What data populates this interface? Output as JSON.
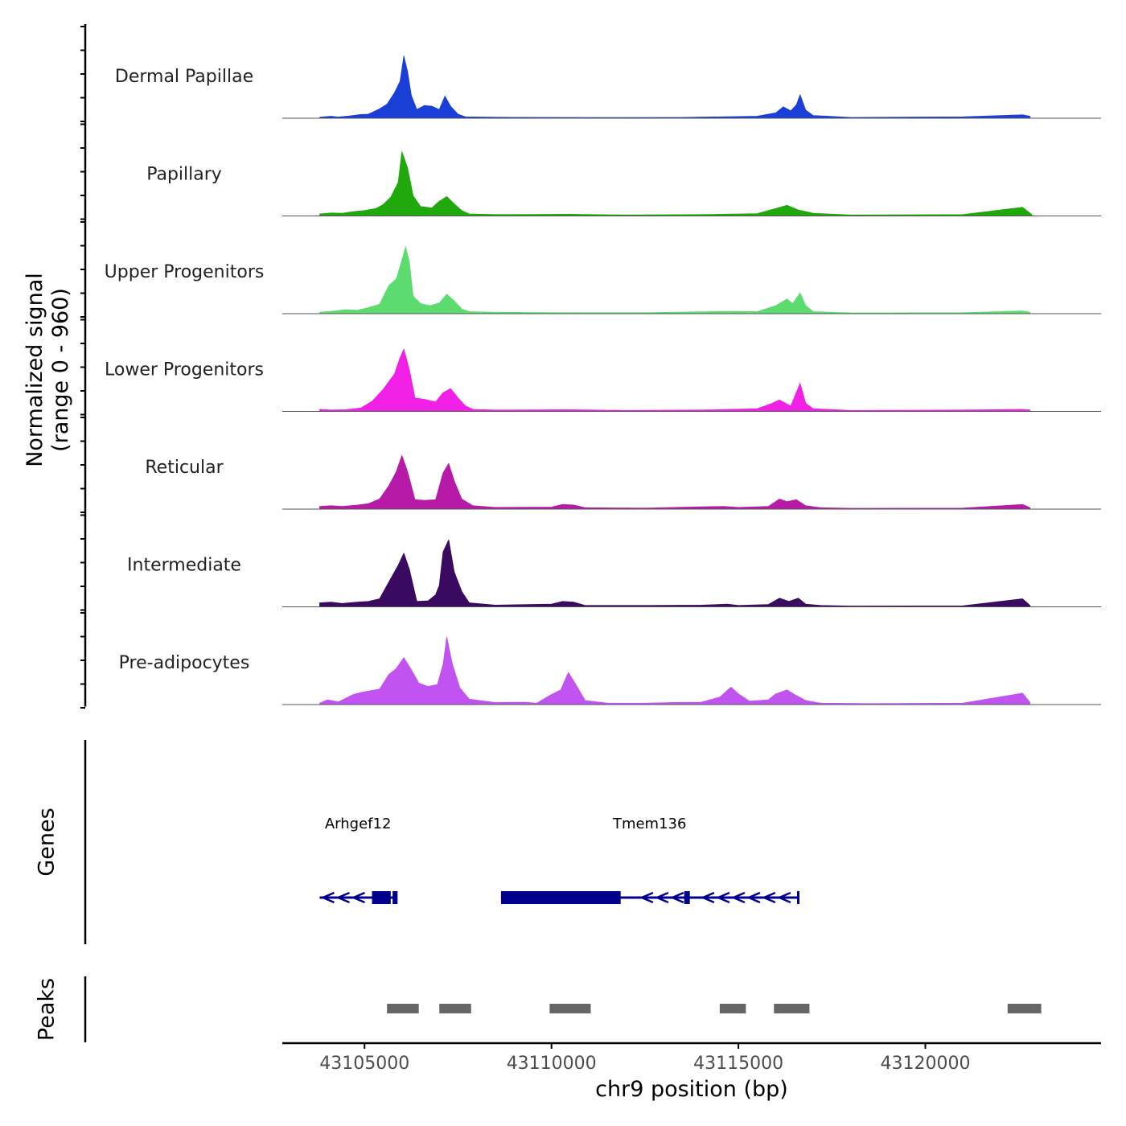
{
  "chart_data": {
    "type": "area",
    "title": "",
    "ylabel": "Normalized signal",
    "ylabel_range": "(range 0 - 960)",
    "ylim": [
      0,
      960
    ],
    "xlabel": "chr9 position (bp)",
    "xlim": [
      43102800,
      43124700
    ],
    "x_ticks": [
      43105000,
      43110000,
      43115000,
      43120000
    ],
    "x_tick_labels": [
      "43105000",
      "43110000",
      "43115000",
      "43120000"
    ],
    "tracks": [
      {
        "name": "Dermal Papillae",
        "color": "#1a3fd6",
        "points": [
          [
            43103800,
            15
          ],
          [
            43104100,
            30
          ],
          [
            43104300,
            18
          ],
          [
            43104600,
            35
          ],
          [
            43104900,
            55
          ],
          [
            43105100,
            60
          ],
          [
            43105400,
            140
          ],
          [
            43105600,
            210
          ],
          [
            43105800,
            380
          ],
          [
            43105950,
            550
          ],
          [
            43106050,
            930
          ],
          [
            43106150,
            700
          ],
          [
            43106250,
            340
          ],
          [
            43106400,
            130
          ],
          [
            43106600,
            190
          ],
          [
            43106800,
            180
          ],
          [
            43107000,
            130
          ],
          [
            43107150,
            330
          ],
          [
            43107300,
            180
          ],
          [
            43107500,
            60
          ],
          [
            43107700,
            20
          ],
          [
            43108500,
            15
          ],
          [
            43110200,
            12
          ],
          [
            43111500,
            10
          ],
          [
            43113500,
            12
          ],
          [
            43115500,
            30
          ],
          [
            43116000,
            80
          ],
          [
            43116200,
            170
          ],
          [
            43116400,
            110
          ],
          [
            43116550,
            200
          ],
          [
            43116650,
            350
          ],
          [
            43116800,
            120
          ],
          [
            43117000,
            40
          ],
          [
            43117400,
            30
          ],
          [
            43118000,
            12
          ],
          [
            43121000,
            20
          ],
          [
            43122600,
            50
          ],
          [
            43122800,
            30
          ]
        ]
      },
      {
        "name": "Papillary",
        "color": "#20a80c",
        "points": [
          [
            43103800,
            30
          ],
          [
            43104100,
            45
          ],
          [
            43104400,
            40
          ],
          [
            43104700,
            65
          ],
          [
            43105000,
            80
          ],
          [
            43105300,
            110
          ],
          [
            43105500,
            170
          ],
          [
            43105700,
            280
          ],
          [
            43105900,
            500
          ],
          [
            43106000,
            960
          ],
          [
            43106150,
            720
          ],
          [
            43106300,
            300
          ],
          [
            43106500,
            140
          ],
          [
            43106800,
            120
          ],
          [
            43107000,
            220
          ],
          [
            43107200,
            290
          ],
          [
            43107400,
            180
          ],
          [
            43107600,
            80
          ],
          [
            43107800,
            30
          ],
          [
            43108500,
            20
          ],
          [
            43110500,
            25
          ],
          [
            43112000,
            15
          ],
          [
            43114000,
            20
          ],
          [
            43115500,
            35
          ],
          [
            43116000,
            110
          ],
          [
            43116300,
            160
          ],
          [
            43116600,
            90
          ],
          [
            43117000,
            40
          ],
          [
            43118000,
            15
          ],
          [
            43121000,
            20
          ],
          [
            43122600,
            130
          ],
          [
            43122850,
            20
          ]
        ]
      },
      {
        "name": "Upper Progenitors",
        "color": "#5cdc6f",
        "points": [
          [
            43103800,
            20
          ],
          [
            43104200,
            40
          ],
          [
            43104500,
            60
          ],
          [
            43104800,
            50
          ],
          [
            43105100,
            90
          ],
          [
            43105400,
            140
          ],
          [
            43105650,
            420
          ],
          [
            43105850,
            520
          ],
          [
            43106000,
            800
          ],
          [
            43106100,
            1000
          ],
          [
            43106200,
            760
          ],
          [
            43106300,
            260
          ],
          [
            43106500,
            150
          ],
          [
            43106750,
            120
          ],
          [
            43107000,
            160
          ],
          [
            43107200,
            290
          ],
          [
            43107400,
            190
          ],
          [
            43107600,
            70
          ],
          [
            43107800,
            30
          ],
          [
            43108500,
            20
          ],
          [
            43110200,
            15
          ],
          [
            43112500,
            15
          ],
          [
            43114800,
            35
          ],
          [
            43115500,
            30
          ],
          [
            43116000,
            120
          ],
          [
            43116300,
            220
          ],
          [
            43116450,
            150
          ],
          [
            43116650,
            310
          ],
          [
            43116800,
            120
          ],
          [
            43117000,
            30
          ],
          [
            43118000,
            12
          ],
          [
            43121000,
            15
          ],
          [
            43122600,
            40
          ],
          [
            43122800,
            20
          ]
        ]
      },
      {
        "name": "Lower Progenitors",
        "color": "#f020e6",
        "points": [
          [
            43103800,
            30
          ],
          [
            43104100,
            20
          ],
          [
            43104500,
            25
          ],
          [
            43104900,
            50
          ],
          [
            43105200,
            150
          ],
          [
            43105500,
            330
          ],
          [
            43105800,
            560
          ],
          [
            43105950,
            800
          ],
          [
            43106050,
            930
          ],
          [
            43106200,
            620
          ],
          [
            43106350,
            200
          ],
          [
            43106600,
            180
          ],
          [
            43106900,
            140
          ],
          [
            43107100,
            280
          ],
          [
            43107300,
            340
          ],
          [
            43107500,
            200
          ],
          [
            43107700,
            80
          ],
          [
            43107900,
            30
          ],
          [
            43108500,
            20
          ],
          [
            43110500,
            25
          ],
          [
            43112000,
            15
          ],
          [
            43114000,
            20
          ],
          [
            43115500,
            40
          ],
          [
            43115900,
            120
          ],
          [
            43116100,
            170
          ],
          [
            43116400,
            80
          ],
          [
            43116650,
            420
          ],
          [
            43116800,
            120
          ],
          [
            43117000,
            40
          ],
          [
            43118000,
            15
          ],
          [
            43121000,
            20
          ],
          [
            43122600,
            30
          ],
          [
            43122800,
            20
          ]
        ]
      },
      {
        "name": "Reticular",
        "color": "#b61aa7",
        "points": [
          [
            43103800,
            40
          ],
          [
            43104100,
            50
          ],
          [
            43104400,
            40
          ],
          [
            43104800,
            60
          ],
          [
            43105100,
            80
          ],
          [
            43105400,
            150
          ],
          [
            43105650,
            350
          ],
          [
            43105850,
            560
          ],
          [
            43106000,
            800
          ],
          [
            43106150,
            560
          ],
          [
            43106350,
            140
          ],
          [
            43106600,
            130
          ],
          [
            43106900,
            140
          ],
          [
            43107100,
            540
          ],
          [
            43107250,
            680
          ],
          [
            43107400,
            420
          ],
          [
            43107600,
            150
          ],
          [
            43107900,
            50
          ],
          [
            43108500,
            25
          ],
          [
            43110000,
            30
          ],
          [
            43110300,
            70
          ],
          [
            43110600,
            60
          ],
          [
            43110900,
            20
          ],
          [
            43112500,
            15
          ],
          [
            43114000,
            35
          ],
          [
            43114600,
            40
          ],
          [
            43115000,
            25
          ],
          [
            43115800,
            40
          ],
          [
            43116100,
            150
          ],
          [
            43116300,
            110
          ],
          [
            43116550,
            140
          ],
          [
            43116800,
            50
          ],
          [
            43117200,
            20
          ],
          [
            43118000,
            12
          ],
          [
            43121000,
            15
          ],
          [
            43122600,
            70
          ],
          [
            43122800,
            20
          ]
        ]
      },
      {
        "name": "Intermediate",
        "color": "#3a0a60",
        "points": [
          [
            43103800,
            60
          ],
          [
            43104100,
            70
          ],
          [
            43104400,
            50
          ],
          [
            43104800,
            70
          ],
          [
            43105100,
            80
          ],
          [
            43105400,
            120
          ],
          [
            43105700,
            420
          ],
          [
            43105900,
            620
          ],
          [
            43106050,
            800
          ],
          [
            43106200,
            560
          ],
          [
            43106400,
            80
          ],
          [
            43106700,
            90
          ],
          [
            43106900,
            180
          ],
          [
            43107000,
            320
          ],
          [
            43107100,
            820
          ],
          [
            43107250,
            1000
          ],
          [
            43107400,
            520
          ],
          [
            43107600,
            230
          ],
          [
            43107800,
            60
          ],
          [
            43108500,
            25
          ],
          [
            43110000,
            40
          ],
          [
            43110300,
            80
          ],
          [
            43110600,
            70
          ],
          [
            43110900,
            20
          ],
          [
            43112500,
            20
          ],
          [
            43114000,
            25
          ],
          [
            43114700,
            40
          ],
          [
            43115000,
            20
          ],
          [
            43115800,
            35
          ],
          [
            43116100,
            130
          ],
          [
            43116350,
            80
          ],
          [
            43116600,
            130
          ],
          [
            43116800,
            40
          ],
          [
            43117200,
            20
          ],
          [
            43118000,
            12
          ],
          [
            43121000,
            15
          ],
          [
            43122600,
            120
          ],
          [
            43122800,
            20
          ]
        ]
      },
      {
        "name": "Pre-adipocytes",
        "color": "#c153f0",
        "points": [
          [
            43103800,
            20
          ],
          [
            43104000,
            70
          ],
          [
            43104300,
            40
          ],
          [
            43104700,
            150
          ],
          [
            43104900,
            180
          ],
          [
            43105100,
            200
          ],
          [
            43105400,
            230
          ],
          [
            43105650,
            450
          ],
          [
            43105850,
            540
          ],
          [
            43106050,
            700
          ],
          [
            43106250,
            520
          ],
          [
            43106450,
            320
          ],
          [
            43106700,
            270
          ],
          [
            43106950,
            300
          ],
          [
            43107100,
            600
          ],
          [
            43107200,
            1010
          ],
          [
            43107350,
            600
          ],
          [
            43107550,
            250
          ],
          [
            43107800,
            80
          ],
          [
            43108500,
            30
          ],
          [
            43109300,
            35
          ],
          [
            43109600,
            20
          ],
          [
            43110000,
            150
          ],
          [
            43110250,
            220
          ],
          [
            43110450,
            480
          ],
          [
            43110650,
            300
          ],
          [
            43110900,
            60
          ],
          [
            43111500,
            20
          ],
          [
            43112500,
            20
          ],
          [
            43113200,
            30
          ],
          [
            43114000,
            35
          ],
          [
            43114500,
            110
          ],
          [
            43114800,
            260
          ],
          [
            43115000,
            160
          ],
          [
            43115300,
            50
          ],
          [
            43115800,
            70
          ],
          [
            43116000,
            160
          ],
          [
            43116300,
            220
          ],
          [
            43116500,
            150
          ],
          [
            43116800,
            60
          ],
          [
            43117200,
            20
          ],
          [
            43118500,
            15
          ],
          [
            43121000,
            20
          ],
          [
            43122600,
            170
          ],
          [
            43122800,
            30
          ]
        ]
      }
    ],
    "genes": [
      {
        "name": "Arhgef12",
        "strand": "-",
        "start": 43103800,
        "end": 43105850,
        "exons": [
          [
            43105200,
            43105700
          ],
          [
            43105750,
            43105850
          ]
        ]
      },
      {
        "name": "Tmem136",
        "strand": "-",
        "start": 43108650,
        "end": 43116600,
        "exons": [
          [
            43108650,
            43111850
          ],
          [
            43113550,
            43113700
          ]
        ]
      }
    ],
    "peaks": [
      [
        43105600,
        43106450
      ],
      [
        43107000,
        43107850
      ],
      [
        43109950,
        43111050
      ],
      [
        43114500,
        43115200
      ],
      [
        43115950,
        43116900
      ],
      [
        43122200,
        43123100
      ]
    ],
    "panel_labels": {
      "genes": "Genes",
      "peaks": "Peaks"
    },
    "colors": {
      "gene": "#00008b",
      "peak": "#666666",
      "axis": "#000000",
      "baseline": "#555555"
    }
  }
}
